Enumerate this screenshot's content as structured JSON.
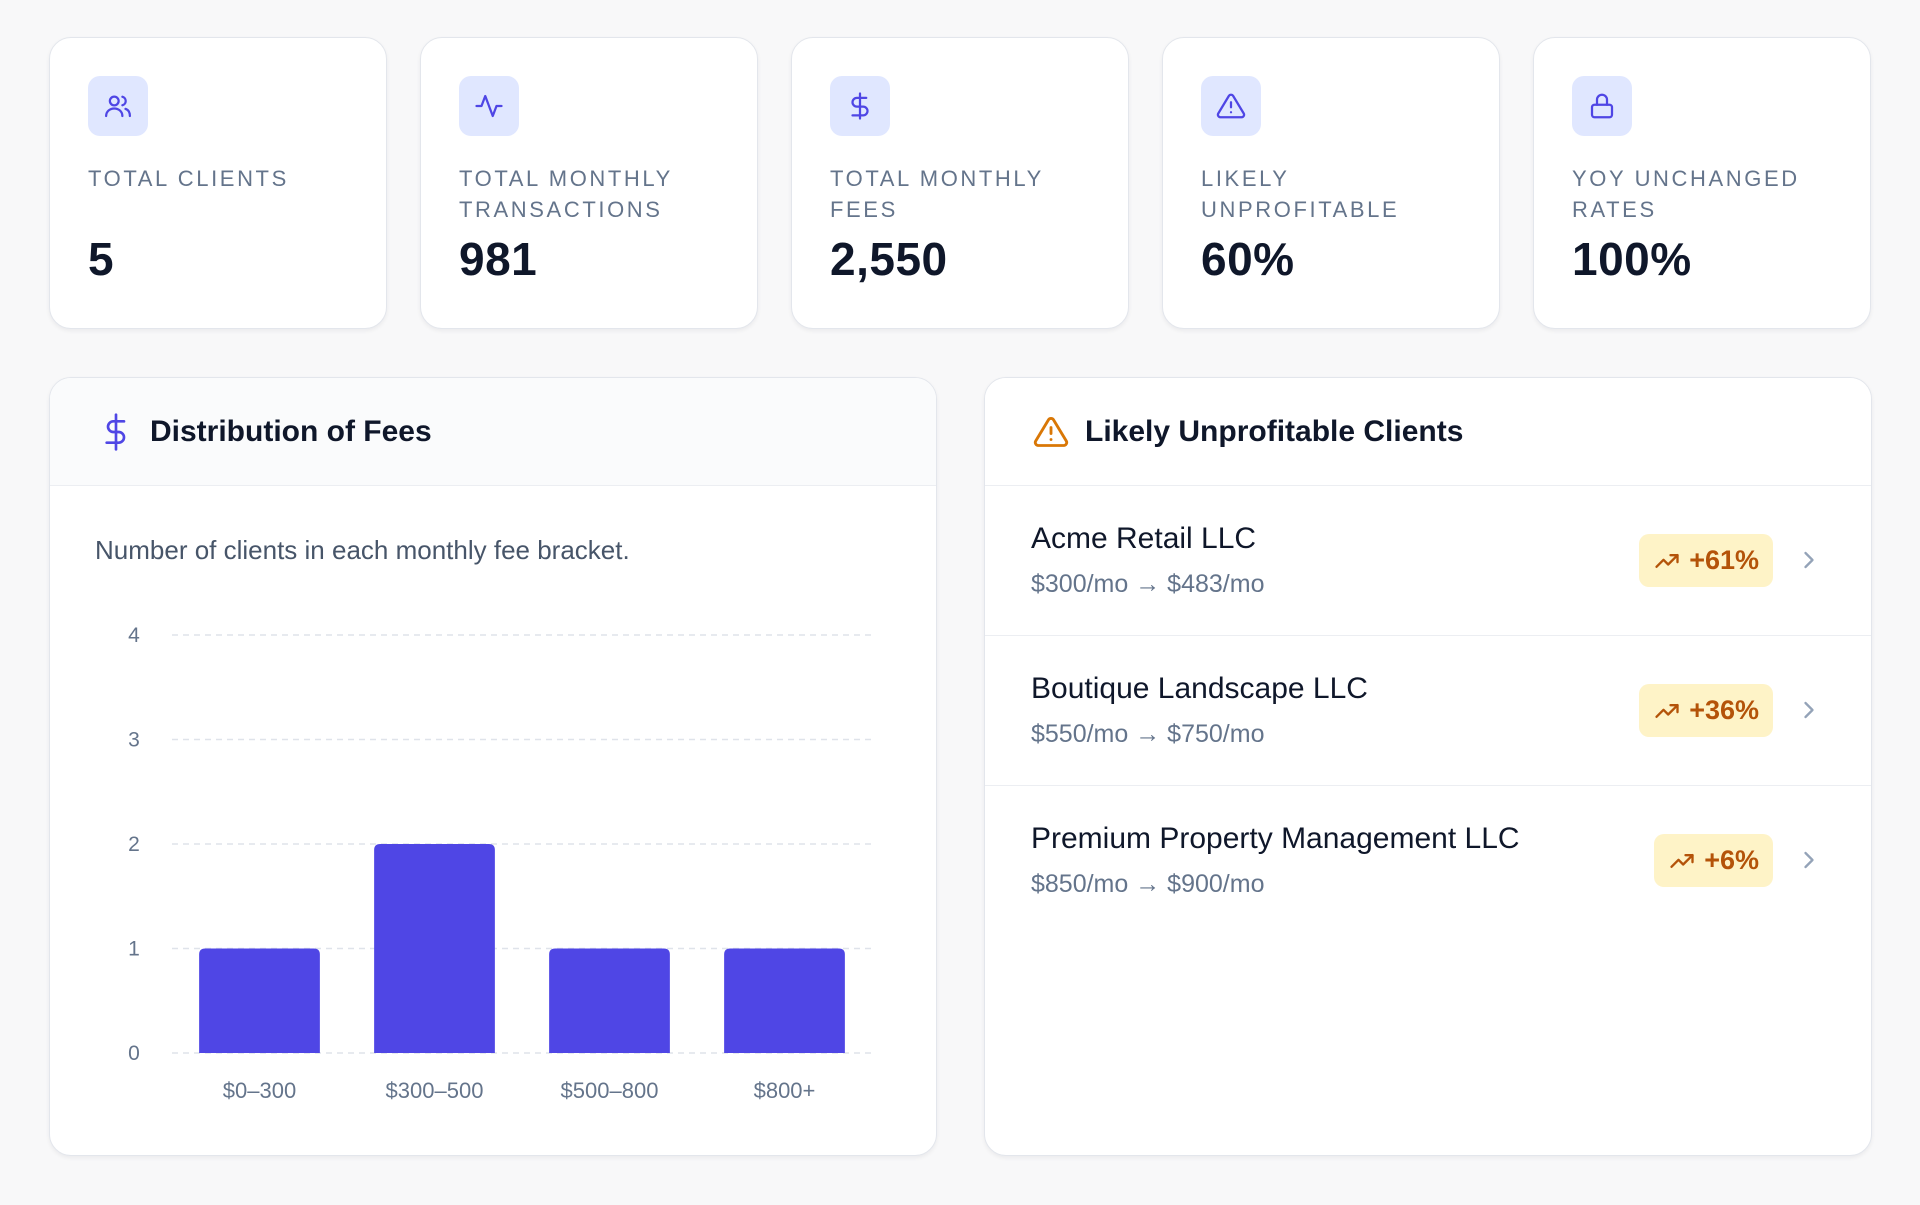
{
  "stats": [
    {
      "label": "TOTAL CLIENTS",
      "value": "5",
      "icon": "users-icon"
    },
    {
      "label": "TOTAL MONTHLY TRANSACTIONS",
      "value": "981",
      "icon": "activity-icon"
    },
    {
      "label": "TOTAL MONTHLY FEES",
      "value": "2,550",
      "icon": "dollar-icon"
    },
    {
      "label": "LIKELY UNPROFITABLE",
      "value": "60%",
      "icon": "warning-icon"
    },
    {
      "label": "YOY UNCHANGED RATES",
      "value": "100%",
      "icon": "lock-icon"
    }
  ],
  "fees_panel": {
    "title": "Distribution of Fees",
    "description": "Number of clients in each monthly fee bracket."
  },
  "clients_panel": {
    "title": "Likely Unprofitable Clients",
    "clients": [
      {
        "name": "Acme Retail LLC",
        "rate": "$300/mo → $483/mo",
        "change": "+61%"
      },
      {
        "name": "Boutique Landscape LLC",
        "rate": "$550/mo → $750/mo",
        "change": "+36%"
      },
      {
        "name": "Premium Property Management LLC",
        "rate": "$850/mo → $900/mo",
        "change": "+6%"
      }
    ]
  },
  "colors": {
    "accent": "#4f46e5",
    "accent_light": "#e0e7ff",
    "warning": "#d97706",
    "badge_bg": "#fef3c7",
    "badge_text": "#b45309"
  },
  "chart_data": {
    "type": "bar",
    "categories": [
      "$0–300",
      "$300–500",
      "$500–800",
      "$800+"
    ],
    "values": [
      1,
      2,
      1,
      1
    ],
    "ylim": [
      0,
      4
    ],
    "yticks": [
      0,
      1,
      2,
      3,
      4
    ],
    "title": "",
    "xlabel": "",
    "ylabel": "",
    "grid": true
  }
}
